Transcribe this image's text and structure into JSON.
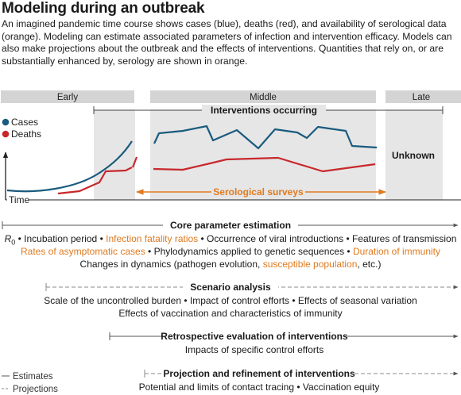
{
  "title": "Modeling during an outbreak",
  "intro": "An imagined pandemic time course shows cases (blue), deaths (red), and availability of serological data (orange). Modeling can estimate associated parameters of infection and intervention efficacy. Models can also make projections about the outbreak and the effects of interventions. Quantities that rely on, or are substantially enhanced by, serology are shown in orange.",
  "phases": {
    "early": "Early",
    "middle": "Middle",
    "late": "Late"
  },
  "interventions_label": "Interventions occurring",
  "legend": {
    "cases": "Cases",
    "deaths": "Deaths"
  },
  "unknown_label": "Unknown",
  "time_label": "Time",
  "serological_label": "Serological surveys",
  "colors": {
    "cases": "#1a5b7e",
    "deaths": "#c8282c",
    "serology": "#e07a1f",
    "shade": "#e6e6e6",
    "band": "#d4d4d4"
  },
  "core": {
    "title": "Core parameter estimation",
    "line1": {
      "r0": "R",
      "r0_sub": "0",
      "a": " • Incubation period • ",
      "b": "Infection fatality ratios",
      "c": " • Occurrence  of viral introductions • Features of transmission"
    },
    "line2": {
      "a": "Rates of asymptomatic cases",
      "b": " • Phylodynamics applied to genetic sequences • ",
      "c": "Duration of immunity"
    },
    "line3": {
      "a": "Changes in dynamics (pathogen evolution, ",
      "b": "susceptible population",
      "c": ", etc.)"
    }
  },
  "scenario": {
    "title": "Scenario analysis",
    "line1": "Scale of the uncontrolled burden • Impact of control efforts • Effects of seasonal variation",
    "line2": "Effects of vaccination and characteristics of immunity"
  },
  "retro": {
    "title": "Retrospective evaluation of interventions",
    "line1": "Impacts of specific control efforts"
  },
  "projection": {
    "title": "Projection and refinement of interventions",
    "line1": "Potential and limits of contact tracing • Vaccination equity"
  },
  "key": {
    "estimates": "Estimates",
    "projections": "Projections"
  }
}
